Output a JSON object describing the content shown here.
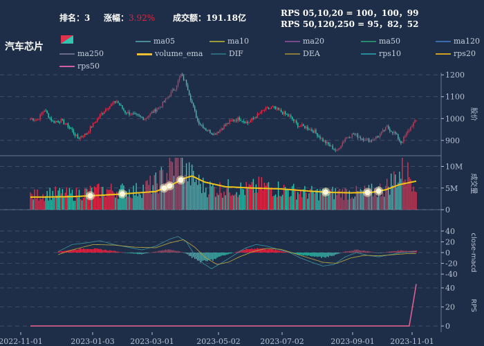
{
  "header": {
    "rank_label": "排名：",
    "rank": "3",
    "change_label": "涨幅：",
    "change": "3.92%",
    "turnover_label": "成交额：",
    "turnover": "191.18亿",
    "rps_line1": "RPS 05,10,20 = 100，100，99",
    "rps_line2": "RPS 50,120,250 = 95，82，52"
  },
  "sector_title": "汽车芯片",
  "legend": [
    {
      "name": "ma05",
      "color": "#4a8a9a"
    },
    {
      "name": "ma10",
      "color": "#9a9a3a"
    },
    {
      "name": "ma20",
      "color": "#7a4a8a"
    },
    {
      "name": "ma50",
      "color": "#2a8a6a"
    },
    {
      "name": "ma120",
      "color": "#3a6aaa"
    },
    {
      "name": "ma250",
      "color": "#6a6a8a"
    },
    {
      "name": "volume_ema",
      "color": "#f0c030"
    },
    {
      "name": "DIF",
      "color": "#2a6a7a"
    },
    {
      "name": "DEA",
      "color": "#8a7a3a"
    },
    {
      "name": "rps10",
      "color": "#2a8a9a"
    },
    {
      "name": "rps20",
      "color": "#d0a020"
    },
    {
      "name": "rps50",
      "color": "#d060a0"
    }
  ],
  "colors": {
    "up": "#e0314f",
    "down": "#35c4b0",
    "ema": "#f5c518",
    "dif": "#3a8a9a",
    "dea": "#b0a040",
    "rps": "#e06090",
    "grid": "#4a5a70",
    "axis": "#b8c2d0"
  },
  "chart_data": {
    "type": "candlestick",
    "x_dates": [
      "2022-11-01",
      "2023-01-03",
      "2023-03-01",
      "2023-05-02",
      "2023-07-02",
      "2023-09-01",
      "2023-11-01"
    ],
    "price_panel": {
      "ylabel": "股价",
      "yticks": [
        900,
        1000,
        1100,
        1200
      ],
      "ylim": [
        830,
        1210
      ]
    },
    "volume_panel": {
      "ylabel": "成交量",
      "yticks": [
        "0",
        "5M",
        "10M"
      ],
      "ylim": [
        0,
        12
      ]
    },
    "macd_panel": {
      "ylabel": "close-macd",
      "yticks": [
        -40,
        -20,
        0,
        20,
        40
      ],
      "ylim": [
        -45,
        45
      ]
    },
    "rps_panel": {
      "ylabel": "RPS",
      "yticks": [
        0,
        20,
        40
      ],
      "ylim": [
        -5,
        48
      ]
    },
    "price_anchors": [
      [
        0,
        1000
      ],
      [
        5,
        995
      ],
      [
        10,
        1040
      ],
      [
        16,
        985
      ],
      [
        22,
        990
      ],
      [
        28,
        960
      ],
      [
        34,
        910
      ],
      [
        40,
        930
      ],
      [
        48,
        1000
      ],
      [
        55,
        1050
      ],
      [
        62,
        1080
      ],
      [
        68,
        1030
      ],
      [
        75,
        1015
      ],
      [
        82,
        1000
      ],
      [
        88,
        1030
      ],
      [
        94,
        1060
      ],
      [
        100,
        1110
      ],
      [
        104,
        1140
      ],
      [
        108,
        1200
      ],
      [
        112,
        1160
      ],
      [
        116,
        1070
      ],
      [
        120,
        990
      ],
      [
        126,
        950
      ],
      [
        132,
        930
      ],
      [
        138,
        960
      ],
      [
        144,
        990
      ],
      [
        150,
        1000
      ],
      [
        156,
        980
      ],
      [
        162,
        1010
      ],
      [
        168,
        1040
      ],
      [
        174,
        1050
      ],
      [
        180,
        1030
      ],
      [
        186,
        1010
      ],
      [
        192,
        970
      ],
      [
        198,
        960
      ],
      [
        204,
        940
      ],
      [
        210,
        900
      ],
      [
        216,
        870
      ],
      [
        220,
        850
      ],
      [
        226,
        910
      ],
      [
        232,
        930
      ],
      [
        238,
        910
      ],
      [
        244,
        900
      ],
      [
        250,
        920
      ],
      [
        256,
        960
      ],
      [
        262,
        930
      ],
      [
        266,
        890
      ],
      [
        270,
        930
      ],
      [
        274,
        970
      ],
      [
        277,
        990
      ]
    ],
    "volume_anchors": [
      [
        0,
        3.2
      ],
      [
        15,
        3.8
      ],
      [
        30,
        3.5
      ],
      [
        45,
        4.2
      ],
      [
        60,
        4.5
      ],
      [
        75,
        4.3
      ],
      [
        90,
        6.0
      ],
      [
        100,
        9.0
      ],
      [
        106,
        11.5
      ],
      [
        112,
        8.5
      ],
      [
        118,
        7.0
      ],
      [
        125,
        5.2
      ],
      [
        135,
        4.8
      ],
      [
        145,
        5.0
      ],
      [
        155,
        4.6
      ],
      [
        165,
        5.4
      ],
      [
        175,
        5.0
      ],
      [
        185,
        4.5
      ],
      [
        195,
        4.0
      ],
      [
        205,
        3.8
      ],
      [
        215,
        3.8
      ],
      [
        225,
        4.0
      ],
      [
        235,
        3.8
      ],
      [
        245,
        4.2
      ],
      [
        255,
        5.0
      ],
      [
        262,
        7.5
      ],
      [
        268,
        9.0
      ],
      [
        272,
        8.0
      ],
      [
        277,
        7.0
      ]
    ],
    "ema_anchors": [
      [
        0,
        2.9
      ],
      [
        30,
        3.0
      ],
      [
        60,
        3.5
      ],
      [
        90,
        4.2
      ],
      [
        100,
        5.5
      ],
      [
        110,
        7.2
      ],
      [
        116,
        7.8
      ],
      [
        125,
        6.4
      ],
      [
        140,
        5.3
      ],
      [
        160,
        5.0
      ],
      [
        180,
        4.8
      ],
      [
        200,
        4.3
      ],
      [
        215,
        4.0
      ],
      [
        230,
        3.9
      ],
      [
        245,
        4.0
      ],
      [
        255,
        4.6
      ],
      [
        265,
        5.8
      ],
      [
        277,
        6.6
      ]
    ],
    "ema_markers": [
      43,
      66,
      96,
      100,
      108,
      212,
      242,
      250
    ],
    "macd_hist_anchors": [
      [
        0,
        -4
      ],
      [
        10,
        -2
      ],
      [
        20,
        2
      ],
      [
        30,
        5
      ],
      [
        40,
        8
      ],
      [
        50,
        6
      ],
      [
        60,
        3
      ],
      [
        70,
        -1
      ],
      [
        80,
        -3
      ],
      [
        90,
        2
      ],
      [
        100,
        6
      ],
      [
        106,
        3
      ],
      [
        112,
        -2
      ],
      [
        118,
        -12
      ],
      [
        124,
        -18
      ],
      [
        130,
        -14
      ],
      [
        138,
        -6
      ],
      [
        146,
        0
      ],
      [
        154,
        6
      ],
      [
        162,
        8
      ],
      [
        170,
        7
      ],
      [
        178,
        4
      ],
      [
        186,
        0
      ],
      [
        194,
        -4
      ],
      [
        202,
        -7
      ],
      [
        210,
        -9
      ],
      [
        218,
        -5
      ],
      [
        226,
        2
      ],
      [
        234,
        5
      ],
      [
        242,
        3
      ],
      [
        250,
        -1
      ],
      [
        258,
        2
      ],
      [
        266,
        4
      ],
      [
        272,
        3
      ],
      [
        277,
        4
      ]
    ],
    "dif_anchors": [
      [
        0,
        -8
      ],
      [
        10,
        -12
      ],
      [
        20,
        2
      ],
      [
        30,
        15
      ],
      [
        40,
        18
      ],
      [
        50,
        22
      ],
      [
        60,
        15
      ],
      [
        70,
        10
      ],
      [
        80,
        5
      ],
      [
        90,
        12
      ],
      [
        100,
        25
      ],
      [
        106,
        30
      ],
      [
        112,
        20
      ],
      [
        118,
        -5
      ],
      [
        124,
        -20
      ],
      [
        130,
        -30
      ],
      [
        138,
        -18
      ],
      [
        146,
        -5
      ],
      [
        154,
        8
      ],
      [
        162,
        15
      ],
      [
        170,
        12
      ],
      [
        178,
        6
      ],
      [
        186,
        0
      ],
      [
        194,
        -10
      ],
      [
        202,
        -18
      ],
      [
        210,
        -25
      ],
      [
        218,
        -22
      ],
      [
        226,
        -8
      ],
      [
        234,
        0
      ],
      [
        242,
        -5
      ],
      [
        250,
        -8
      ],
      [
        258,
        -4
      ],
      [
        266,
        0
      ],
      [
        277,
        2
      ]
    ],
    "dea_anchors": [
      [
        0,
        -5
      ],
      [
        15,
        -8
      ],
      [
        30,
        5
      ],
      [
        45,
        15
      ],
      [
        60,
        14
      ],
      [
        75,
        10
      ],
      [
        90,
        9
      ],
      [
        100,
        18
      ],
      [
        110,
        24
      ],
      [
        118,
        10
      ],
      [
        126,
        -10
      ],
      [
        134,
        -22
      ],
      [
        142,
        -18
      ],
      [
        150,
        -8
      ],
      [
        160,
        2
      ],
      [
        170,
        8
      ],
      [
        180,
        6
      ],
      [
        190,
        -2
      ],
      [
        200,
        -10
      ],
      [
        210,
        -18
      ],
      [
        220,
        -20
      ],
      [
        230,
        -10
      ],
      [
        240,
        -5
      ],
      [
        250,
        -6
      ],
      [
        260,
        -4
      ],
      [
        270,
        -2
      ],
      [
        277,
        -2
      ]
    ],
    "rps_anchors": [
      [
        0,
        0
      ],
      [
        272,
        0
      ],
      [
        277,
        44
      ]
    ]
  }
}
